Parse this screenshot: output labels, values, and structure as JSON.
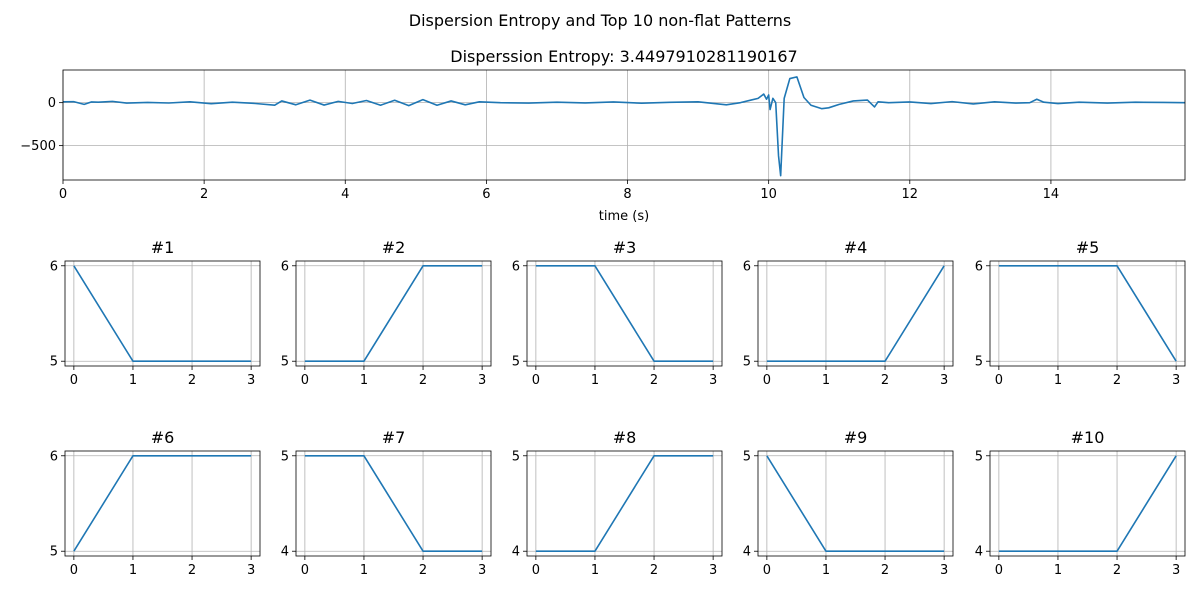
{
  "figure": {
    "suptitle": "Dispersion Entropy and Top 10 non-flat Patterns"
  },
  "colors": {
    "line": "#1f77b4",
    "grid": "#b0b0b0",
    "axis": "#000000"
  },
  "chart_data": [
    {
      "type": "line",
      "title": "Disperssion Entropy: 3.4497910281190167",
      "xlabel": "time (s)",
      "ylabel": "",
      "xlim": [
        0,
        15.9
      ],
      "ylim": [
        -900,
        380
      ],
      "x_ticks": [
        0,
        2,
        4,
        6,
        8,
        10,
        12,
        14
      ],
      "y_ticks": [
        0,
        -500
      ],
      "y_tick_labels": [
        "0",
        "−500"
      ],
      "grid": true,
      "series": [
        {
          "x": [
            0,
            0.15,
            0.3,
            0.4,
            0.5,
            0.7,
            0.9,
            1.2,
            1.5,
            1.8,
            2.1,
            2.4,
            2.7,
            3.0,
            3.1,
            3.3,
            3.5,
            3.7,
            3.9,
            4.1,
            4.3,
            4.5,
            4.7,
            4.9,
            5.1,
            5.3,
            5.5,
            5.7,
            5.9,
            6.2,
            6.6,
            7.0,
            7.4,
            7.8,
            8.2,
            8.6,
            9.0,
            9.4,
            9.6,
            9.75,
            9.85,
            9.93,
            9.97,
            10.0,
            10.02,
            10.06,
            10.1,
            10.14,
            10.17,
            10.22,
            10.3,
            10.4,
            10.5,
            10.6,
            10.75,
            10.85,
            11.0,
            11.2,
            11.4,
            11.5,
            11.55,
            11.7,
            12.0,
            12.3,
            12.6,
            12.9,
            13.2,
            13.5,
            13.7,
            13.8,
            13.9,
            14.1,
            14.4,
            14.8,
            15.2,
            15.6,
            15.9
          ],
          "y": [
            10,
            12,
            -20,
            8,
            5,
            15,
            -5,
            2,
            -4,
            10,
            -12,
            6,
            -8,
            -30,
            20,
            -25,
            30,
            -28,
            15,
            -10,
            25,
            -30,
            28,
            -35,
            35,
            -30,
            20,
            -25,
            10,
            0,
            -5,
            5,
            -3,
            8,
            -6,
            4,
            10,
            -25,
            0,
            30,
            50,
            100,
            40,
            90,
            -80,
            50,
            0,
            -620,
            -850,
            50,
            280,
            300,
            60,
            -30,
            -70,
            -60,
            -20,
            20,
            30,
            -50,
            10,
            0,
            8,
            -10,
            12,
            -15,
            10,
            -5,
            0,
            40,
            5,
            -10,
            5,
            -5,
            5,
            3,
            0
          ]
        }
      ]
    },
    {
      "type": "line",
      "title": "#1",
      "x": [
        0,
        1,
        2,
        3
      ],
      "y": [
        6,
        5,
        5,
        5
      ],
      "ylim": [
        5,
        6
      ],
      "x_ticks": [
        0,
        1,
        2,
        3
      ],
      "y_ticks": [
        5,
        6
      ],
      "grid": true
    },
    {
      "type": "line",
      "title": "#2",
      "x": [
        0,
        1,
        2,
        3
      ],
      "y": [
        5,
        5,
        6,
        6
      ],
      "ylim": [
        5,
        6
      ],
      "x_ticks": [
        0,
        1,
        2,
        3
      ],
      "y_ticks": [
        5,
        6
      ],
      "grid": true
    },
    {
      "type": "line",
      "title": "#3",
      "x": [
        0,
        1,
        2,
        3
      ],
      "y": [
        6,
        6,
        5,
        5
      ],
      "ylim": [
        5,
        6
      ],
      "x_ticks": [
        0,
        1,
        2,
        3
      ],
      "y_ticks": [
        5,
        6
      ],
      "grid": true
    },
    {
      "type": "line",
      "title": "#4",
      "x": [
        0,
        1,
        2,
        3
      ],
      "y": [
        5,
        5,
        5,
        6
      ],
      "ylim": [
        5,
        6
      ],
      "x_ticks": [
        0,
        1,
        2,
        3
      ],
      "y_ticks": [
        5,
        6
      ],
      "grid": true
    },
    {
      "type": "line",
      "title": "#5",
      "x": [
        0,
        1,
        2,
        3
      ],
      "y": [
        6,
        6,
        6,
        5
      ],
      "ylim": [
        5,
        6
      ],
      "x_ticks": [
        0,
        1,
        2,
        3
      ],
      "y_ticks": [
        5,
        6
      ],
      "grid": true
    },
    {
      "type": "line",
      "title": "#6",
      "x": [
        0,
        1,
        2,
        3
      ],
      "y": [
        5,
        6,
        6,
        6
      ],
      "ylim": [
        5,
        6
      ],
      "x_ticks": [
        0,
        1,
        2,
        3
      ],
      "y_ticks": [
        5,
        6
      ],
      "grid": true
    },
    {
      "type": "line",
      "title": "#7",
      "x": [
        0,
        1,
        2,
        3
      ],
      "y": [
        5,
        5,
        4,
        4
      ],
      "ylim": [
        4,
        5
      ],
      "x_ticks": [
        0,
        1,
        2,
        3
      ],
      "y_ticks": [
        4,
        5
      ],
      "grid": true
    },
    {
      "type": "line",
      "title": "#8",
      "x": [
        0,
        1,
        2,
        3
      ],
      "y": [
        4,
        4,
        5,
        5
      ],
      "ylim": [
        4,
        5
      ],
      "x_ticks": [
        0,
        1,
        2,
        3
      ],
      "y_ticks": [
        4,
        5
      ],
      "grid": true
    },
    {
      "type": "line",
      "title": "#9",
      "x": [
        0,
        1,
        2,
        3
      ],
      "y": [
        5,
        4,
        4,
        4
      ],
      "ylim": [
        4,
        5
      ],
      "x_ticks": [
        0,
        1,
        2,
        3
      ],
      "y_ticks": [
        4,
        5
      ],
      "grid": true
    },
    {
      "type": "line",
      "title": "#10",
      "x": [
        0,
        1,
        2,
        3
      ],
      "y": [
        4,
        4,
        4,
        5
      ],
      "ylim": [
        4,
        5
      ],
      "x_ticks": [
        0,
        1,
        2,
        3
      ],
      "y_ticks": [
        4,
        5
      ],
      "grid": true
    }
  ]
}
